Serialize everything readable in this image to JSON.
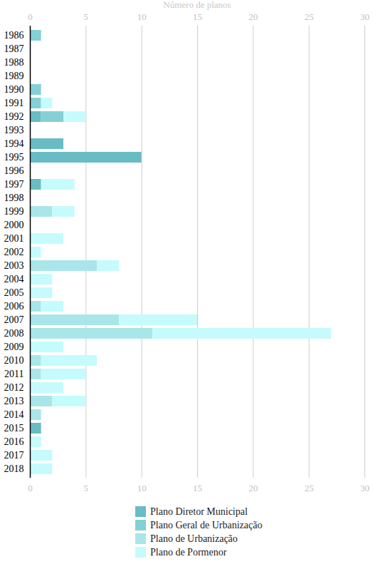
{
  "chart_data": {
    "type": "bar",
    "orientation": "horizontal",
    "stacked": true,
    "grid": true,
    "legend": "bottom",
    "x_label": "Número de planos",
    "xlim": [
      0,
      30
    ],
    "xticks": [
      0,
      5,
      10,
      15,
      20,
      25,
      30
    ],
    "categories": [
      "1986",
      "1987",
      "1988",
      "1989",
      "1990",
      "1991",
      "1992",
      "1993",
      "1994",
      "1995",
      "1996",
      "1997",
      "1998",
      "1999",
      "2000",
      "2001",
      "2002",
      "2003",
      "2004",
      "2005",
      "2006",
      "2007",
      "2008",
      "2009",
      "2010",
      "2011",
      "2012",
      "2013",
      "2014",
      "2015",
      "2016",
      "2017",
      "2018"
    ],
    "series": [
      {
        "name": "Plano Diretor Municipal",
        "color": "#69bcc3",
        "values": [
          0,
          0,
          0,
          0,
          0,
          0,
          1,
          0,
          3,
          10,
          0,
          1,
          0,
          0,
          0,
          0,
          0,
          0,
          0,
          0,
          0,
          0,
          0,
          0,
          0,
          0,
          0,
          0,
          0,
          1,
          0,
          0,
          0
        ]
      },
      {
        "name": "Plano Geral de Urbanização",
        "color": "#84d0d6",
        "values": [
          1,
          0,
          0,
          0,
          1,
          1,
          2,
          0,
          0,
          0,
          0,
          0,
          0,
          0,
          0,
          0,
          0,
          0,
          0,
          0,
          0,
          0,
          0,
          0,
          0,
          0,
          0,
          0,
          0,
          0,
          0,
          0,
          0
        ]
      },
      {
        "name": "Plano de Urbanização",
        "color": "#a9e6ea",
        "values": [
          0,
          0,
          0,
          0,
          0,
          0,
          0,
          0,
          0,
          0,
          0,
          0,
          0,
          2,
          0,
          0,
          0,
          6,
          0,
          0,
          1,
          8,
          11,
          0,
          1,
          1,
          0,
          2,
          1,
          0,
          0,
          0,
          0
        ]
      },
      {
        "name": "Plano de Pormenor",
        "color": "#c6fbfd",
        "values": [
          0,
          0,
          0,
          0,
          0,
          1,
          2,
          0,
          0,
          0,
          0,
          3,
          0,
          2,
          0,
          3,
          1,
          2,
          2,
          2,
          2,
          7,
          16,
          3,
          5,
          4,
          3,
          3,
          0,
          0,
          1,
          2,
          2
        ]
      }
    ]
  }
}
